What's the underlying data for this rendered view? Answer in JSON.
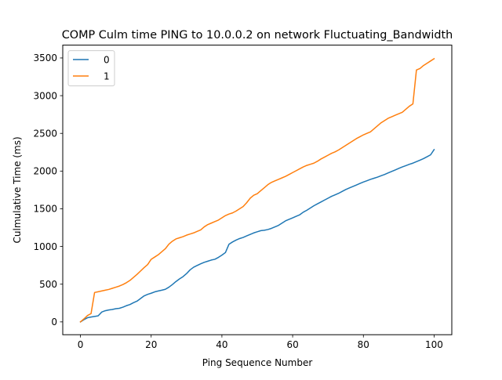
{
  "colors": {
    "series_0": "#1f77b4",
    "series_1": "#ff7f0e",
    "axes": "#000000",
    "legend_border": "#cccccc",
    "background": "#ffffff"
  },
  "chart_data": {
    "type": "line",
    "title": "COMP Culm time PING to 10.0.0.2 on network Fluctuating_Bandwidth",
    "xlabel": "Ping Sequence Number",
    "ylabel": "Culmulative Time (ms)",
    "xlim": [
      -5,
      105
    ],
    "ylim": [
      -170,
      3670
    ],
    "xticks": [
      0,
      20,
      40,
      60,
      80,
      100
    ],
    "yticks": [
      0,
      500,
      1000,
      1500,
      2000,
      2500,
      3000,
      3500
    ],
    "grid": false,
    "legend_position": "upper-left",
    "series": [
      {
        "name": "0",
        "x": [
          0,
          1,
          2,
          3,
          4,
          5,
          6,
          7,
          8,
          9,
          10,
          11,
          12,
          13,
          14,
          15,
          16,
          17,
          18,
          19,
          20,
          21,
          22,
          23,
          24,
          25,
          26,
          27,
          28,
          29,
          30,
          31,
          32,
          33,
          34,
          35,
          36,
          37,
          38,
          39,
          40,
          41,
          42,
          43,
          44,
          45,
          46,
          47,
          48,
          49,
          50,
          51,
          52,
          53,
          54,
          55,
          56,
          57,
          58,
          59,
          60,
          61,
          62,
          63,
          64,
          65,
          66,
          67,
          68,
          69,
          70,
          71,
          72,
          73,
          74,
          75,
          76,
          77,
          78,
          79,
          80,
          81,
          82,
          83,
          84,
          85,
          86,
          87,
          88,
          89,
          90,
          91,
          92,
          93,
          94,
          95,
          96,
          97,
          98,
          99,
          100
        ],
        "values": [
          0,
          30,
          55,
          65,
          72,
          80,
          130,
          148,
          158,
          165,
          175,
          180,
          195,
          215,
          230,
          255,
          275,
          310,
          345,
          365,
          380,
          398,
          410,
          420,
          432,
          460,
          495,
          535,
          570,
          600,
          640,
          690,
          725,
          748,
          770,
          790,
          805,
          820,
          830,
          855,
          885,
          920,
          1030,
          1060,
          1085,
          1105,
          1120,
          1140,
          1160,
          1180,
          1195,
          1210,
          1215,
          1225,
          1240,
          1260,
          1280,
          1310,
          1340,
          1360,
          1380,
          1400,
          1420,
          1455,
          1480,
          1510,
          1540,
          1565,
          1590,
          1615,
          1640,
          1665,
          1685,
          1705,
          1730,
          1755,
          1775,
          1795,
          1815,
          1835,
          1855,
          1872,
          1890,
          1905,
          1920,
          1938,
          1955,
          1975,
          1995,
          2015,
          2035,
          2055,
          2072,
          2090,
          2105,
          2125,
          2145,
          2165,
          2190,
          2215,
          2285
        ]
      },
      {
        "name": "1",
        "x": [
          0,
          1,
          2,
          3,
          4,
          5,
          6,
          7,
          8,
          9,
          10,
          11,
          12,
          13,
          14,
          15,
          16,
          17,
          18,
          19,
          20,
          21,
          22,
          23,
          24,
          25,
          26,
          27,
          28,
          29,
          30,
          31,
          32,
          33,
          34,
          35,
          36,
          37,
          38,
          39,
          40,
          41,
          42,
          43,
          44,
          45,
          46,
          47,
          48,
          49,
          50,
          51,
          52,
          53,
          54,
          55,
          56,
          57,
          58,
          59,
          60,
          61,
          62,
          63,
          64,
          65,
          66,
          67,
          68,
          69,
          70,
          71,
          72,
          73,
          74,
          75,
          76,
          77,
          78,
          79,
          80,
          81,
          82,
          83,
          84,
          85,
          86,
          87,
          88,
          89,
          90,
          91,
          92,
          93,
          94,
          95,
          96,
          97,
          98,
          99,
          100
        ],
        "values": [
          0,
          40,
          85,
          110,
          390,
          400,
          410,
          420,
          430,
          445,
          460,
          475,
          495,
          520,
          550,
          590,
          630,
          675,
          720,
          760,
          830,
          860,
          890,
          930,
          970,
          1030,
          1070,
          1100,
          1115,
          1130,
          1150,
          1165,
          1180,
          1200,
          1220,
          1260,
          1290,
          1310,
          1330,
          1350,
          1380,
          1410,
          1430,
          1445,
          1470,
          1500,
          1530,
          1580,
          1640,
          1680,
          1700,
          1740,
          1780,
          1820,
          1850,
          1870,
          1890,
          1910,
          1930,
          1955,
          1980,
          2005,
          2030,
          2055,
          2075,
          2090,
          2105,
          2130,
          2160,
          2185,
          2210,
          2235,
          2255,
          2280,
          2310,
          2340,
          2370,
          2400,
          2430,
          2455,
          2480,
          2500,
          2520,
          2560,
          2600,
          2640,
          2670,
          2700,
          2720,
          2740,
          2760,
          2780,
          2820,
          2860,
          2890,
          3340,
          3360,
          3400,
          3430,
          3460,
          3490
        ]
      }
    ]
  }
}
